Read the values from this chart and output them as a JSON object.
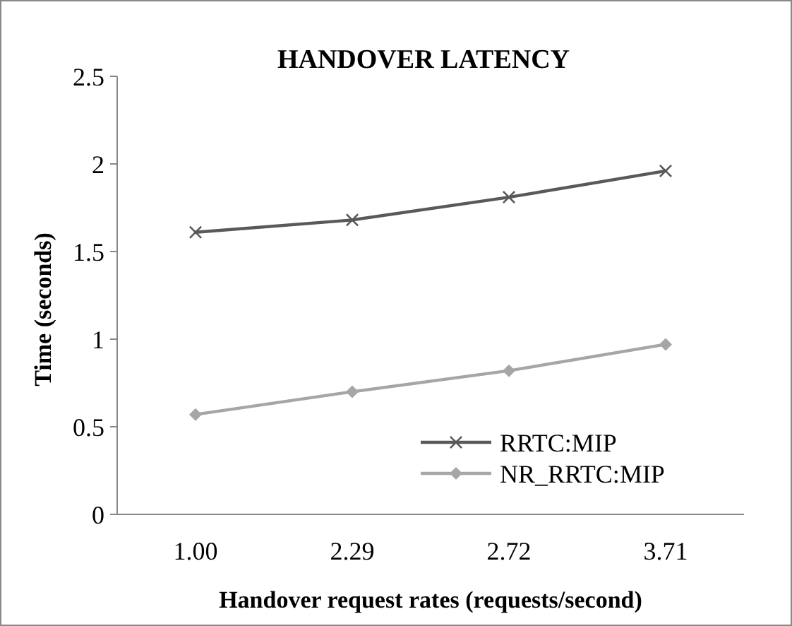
{
  "chart_data": {
    "type": "line",
    "title": "HANDOVER LATENCY",
    "xlabel": "Handover request rates (requests/second)",
    "ylabel": "Time (seconds)",
    "categories": [
      "1.00",
      "2.29",
      "2.72",
      "3.71"
    ],
    "series": [
      {
        "name": "RRTC:MIP",
        "color": "#595959",
        "values": [
          1.61,
          1.68,
          1.81,
          1.96
        ],
        "marker": "cross"
      },
      {
        "name": "NR_RRTC:MIP",
        "color": "#a6a6a6",
        "values": [
          0.57,
          0.7,
          0.82,
          0.97
        ],
        "marker": "diamond"
      }
    ],
    "ylim": [
      0,
      2.5
    ],
    "yticks": [
      0,
      {
        "value": 0.5,
        "label": "0.5"
      },
      1,
      {
        "value": 1.5,
        "label": "1.5"
      },
      2,
      {
        "value": 2.5,
        "label": "2.5"
      }
    ],
    "grid": false,
    "legend": "bottom right",
    "line_style": "solid"
  }
}
